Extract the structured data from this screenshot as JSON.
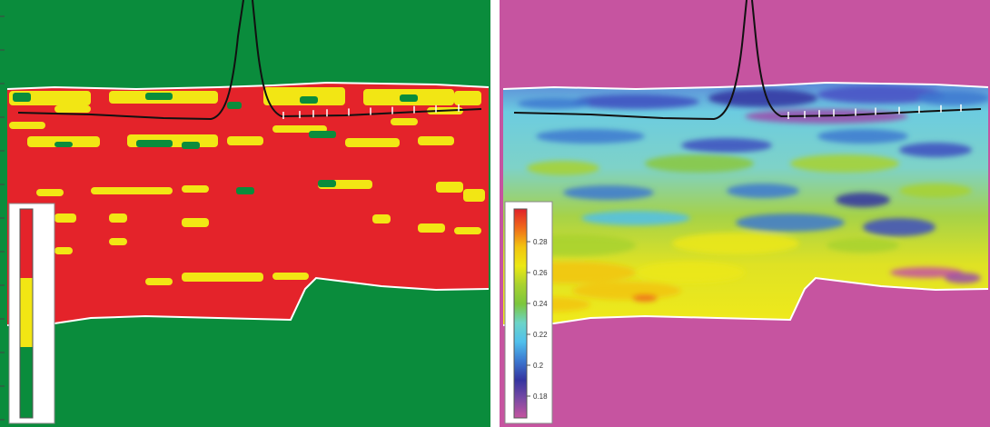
{
  "left_panel": {
    "colors": {
      "background": "#0a8c3c",
      "body": "#e4232a",
      "patch": "#f2e614",
      "outline": "#ffffff",
      "well": "#111111"
    },
    "legend": {
      "classes": [
        {
          "color": "#e4232a"
        },
        {
          "color": "#f2e614"
        },
        {
          "color": "#0a8c3c"
        }
      ]
    }
  },
  "right_panel": {
    "colors": {
      "background": "#c654a0",
      "outline": "#ffffff",
      "well": "#111111"
    },
    "colorbar": {
      "stops": [
        "#e0202a",
        "#f06a1a",
        "#f2c410",
        "#ece814",
        "#a8d230",
        "#7cc63c",
        "#6cd4c8",
        "#50c0ec",
        "#3c78d0",
        "#3434a0",
        "#7a4aa4",
        "#c654a0"
      ],
      "tick_labels": [
        "0.28",
        "0.26",
        "0.24",
        "0.22",
        "0.2",
        "0.18"
      ]
    }
  }
}
